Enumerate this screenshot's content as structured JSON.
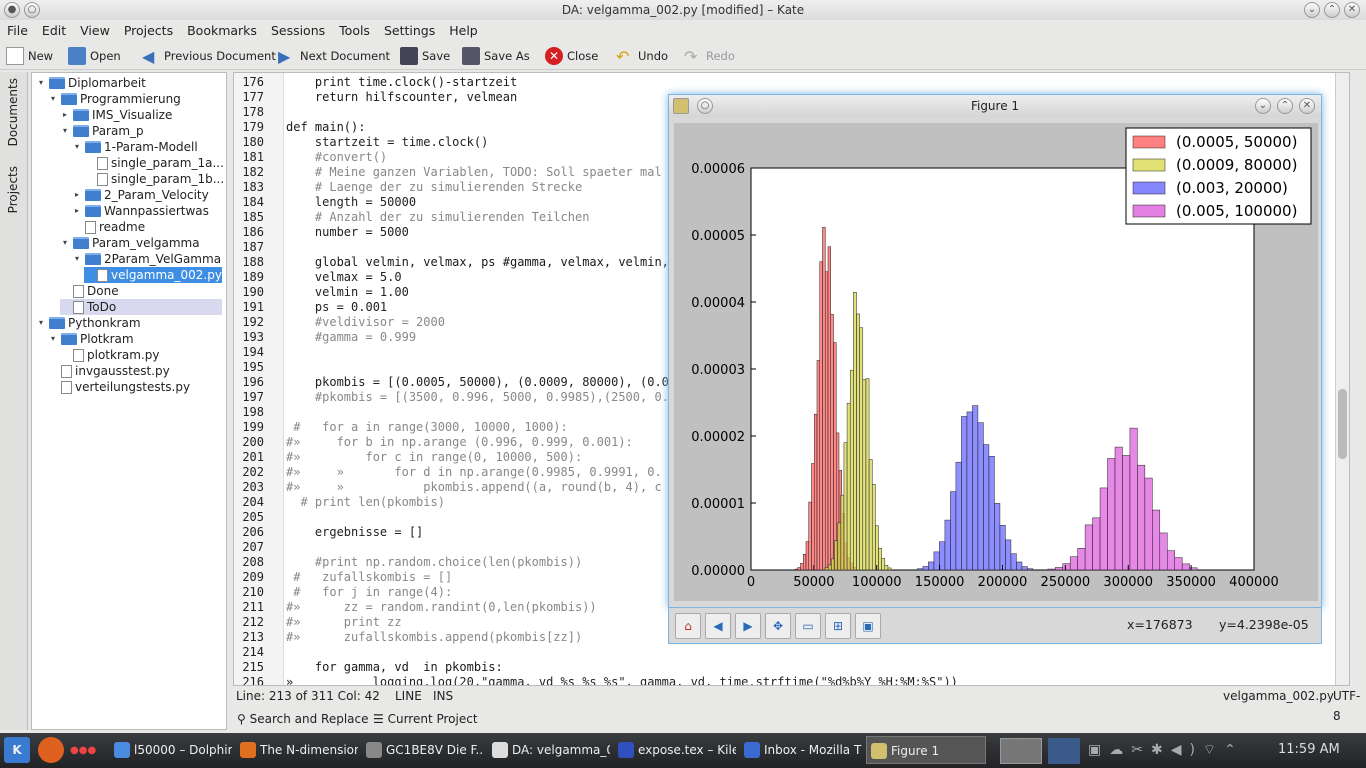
{
  "window": {
    "title": "DA: velgamma_002.py [modified] – Kate"
  },
  "menu": [
    "File",
    "Edit",
    "View",
    "Projects",
    "Bookmarks",
    "Sessions",
    "Tools",
    "Settings",
    "Help"
  ],
  "toolbar": {
    "new": "New",
    "open": "Open",
    "prev": "Previous Document",
    "next": "Next Document",
    "save": "Save",
    "saveas": "Save As",
    "close": "Close",
    "undo": "Undo",
    "redo": "Redo"
  },
  "sidetabs": {
    "documents": "Documents",
    "projects": "Projects"
  },
  "tree": [
    {
      "label": "Diplomarbeit",
      "indent": 0,
      "type": "folder",
      "arrow": "▾"
    },
    {
      "label": "Programmierung",
      "indent": 1,
      "type": "folder",
      "arrow": "▾"
    },
    {
      "label": "IMS_Visualize",
      "indent": 2,
      "type": "folder",
      "arrow": "▸"
    },
    {
      "label": "Param_p",
      "indent": 2,
      "type": "folder",
      "arrow": "▾"
    },
    {
      "label": "1-Param-Modell",
      "indent": 3,
      "type": "folder",
      "arrow": "▾"
    },
    {
      "label": "single_param_1a...",
      "indent": 4,
      "type": "file",
      "arrow": ""
    },
    {
      "label": "single_param_1b...",
      "indent": 4,
      "type": "file",
      "arrow": ""
    },
    {
      "label": "2_Param_Velocity",
      "indent": 3,
      "type": "folder",
      "arrow": "▸"
    },
    {
      "label": "Wannpassiertwas",
      "indent": 3,
      "type": "folder",
      "arrow": "▸"
    },
    {
      "label": "readme",
      "indent": 3,
      "type": "file",
      "arrow": ""
    },
    {
      "label": "Param_velgamma",
      "indent": 2,
      "type": "folder",
      "arrow": "▾"
    },
    {
      "label": "2Param_VelGamma",
      "indent": 3,
      "type": "folder",
      "arrow": "▾"
    },
    {
      "label": "velgamma_002.py",
      "indent": 4,
      "type": "file",
      "arrow": "",
      "selected": true
    },
    {
      "label": "Done",
      "indent": 2,
      "type": "file",
      "arrow": ""
    },
    {
      "label": "ToDo",
      "indent": 2,
      "type": "file",
      "arrow": "",
      "hl": true
    },
    {
      "label": "Pythonkram",
      "indent": 0,
      "type": "folder",
      "arrow": "▾"
    },
    {
      "label": "Plotkram",
      "indent": 1,
      "type": "folder",
      "arrow": "▾"
    },
    {
      "label": "plotkram.py",
      "indent": 2,
      "type": "file",
      "arrow": ""
    },
    {
      "label": "invgausstest.py",
      "indent": 1,
      "type": "file",
      "arrow": ""
    },
    {
      "label": "verteilungstests.py",
      "indent": 1,
      "type": "file",
      "arrow": ""
    }
  ],
  "code": [
    {
      "n": "176",
      "t": "    print time.clock()-startzeit"
    },
    {
      "n": "177",
      "t": "    return hilfscounter, velmean"
    },
    {
      "n": "178",
      "t": ""
    },
    {
      "n": "179",
      "t": "def main():"
    },
    {
      "n": "180",
      "t": "    startzeit = time.clock()"
    },
    {
      "n": "181",
      "t": "    #convert()"
    },
    {
      "n": "182",
      "t": "    # Meine ganzen Variablen, TODO: Soll spaeter mal"
    },
    {
      "n": "183",
      "t": "    # Laenge der zu simulierenden Strecke"
    },
    {
      "n": "184",
      "t": "    length = 50000"
    },
    {
      "n": "185",
      "t": "    # Anzahl der zu simulierenden Teilchen"
    },
    {
      "n": "186",
      "t": "    number = 5000"
    },
    {
      "n": "187",
      "t": ""
    },
    {
      "n": "188",
      "t": "    global velmin, velmax, ps #gamma, velmax, velmin,"
    },
    {
      "n": "189",
      "t": "    velmax = 5.0"
    },
    {
      "n": "190",
      "t": "    velmin = 1.00"
    },
    {
      "n": "191",
      "t": "    ps = 0.001"
    },
    {
      "n": "192",
      "t": "    #veldivisor = 2000"
    },
    {
      "n": "193",
      "t": "    #gamma = 0.999"
    },
    {
      "n": "194",
      "t": ""
    },
    {
      "n": "195",
      "t": ""
    },
    {
      "n": "196",
      "t": "    pkombis = [(0.0005, 50000), (0.0009, 80000), (0.0"
    },
    {
      "n": "197",
      "t": "    #pkombis = [(3500, 0.996, 5000, 0.9985),(2500, 0."
    },
    {
      "n": "198",
      "t": ""
    },
    {
      "n": "199",
      "t": " #   for a in range(3000, 10000, 1000):"
    },
    {
      "n": "200",
      "t": "#»     for b in np.arange (0.996, 0.999, 0.001):"
    },
    {
      "n": "201",
      "t": "#»         for c in range(0, 10000, 500):"
    },
    {
      "n": "202",
      "t": "#»     »       for d in np.arange(0.9985, 0.9991, 0."
    },
    {
      "n": "203",
      "t": "#»     »           pkombis.append((a, round(b, 4), c"
    },
    {
      "n": "204",
      "t": "  # print len(pkombis)"
    },
    {
      "n": "205",
      "t": ""
    },
    {
      "n": "206",
      "t": "    ergebnisse = []"
    },
    {
      "n": "207",
      "t": ""
    },
    {
      "n": "208",
      "t": "    #print np.random.choice(len(pkombis))"
    },
    {
      "n": "209",
      "t": " #   zufallskombis = []"
    },
    {
      "n": "210",
      "t": " #   for j in range(4):"
    },
    {
      "n": "211",
      "t": "#»      zz = random.randint(0,len(pkombis))"
    },
    {
      "n": "212",
      "t": "#»      print zz"
    },
    {
      "n": "213",
      "t": "#»      zufallskombis.append(pkombis[zz])"
    },
    {
      "n": "214",
      "t": ""
    },
    {
      "n": "215",
      "t": "    for gamma, vd  in pkombis:"
    },
    {
      "n": "216",
      "t": "»           logging.log(20,\"gamma, vd %s %s %s\", gamma, vd, time.strftime(\"%d%b%Y %H:%M:%S\"))"
    }
  ],
  "status": {
    "position": "Line: 213 of 311 Col: 42",
    "mode": "LINE",
    "ins": "INS",
    "file": "velgamma_002.py",
    "enc": "UTF-8"
  },
  "bottom": {
    "search": "Search and Replace",
    "project": "Current Project"
  },
  "figure": {
    "title": "Figure 1",
    "coords_x": "x=176873",
    "coords_y": "y=4.2398e-05"
  },
  "chart_data": {
    "type": "bar",
    "title": "",
    "xlabel": "",
    "ylabel": "",
    "xlim": [
      0,
      400000
    ],
    "ylim": [
      0,
      6e-05
    ],
    "xticks": [
      "0",
      "50000",
      "100000",
      "150000",
      "200000",
      "250000",
      "300000",
      "350000",
      "400000"
    ],
    "yticks": [
      "0.00000",
      "0.00001",
      "0.00002",
      "0.00003",
      "0.00004",
      "0.00005",
      "0.00006"
    ],
    "legend": "top-right",
    "series": [
      {
        "name": "(0.0005, 50000)",
        "color": "#ff6060",
        "center": 60000,
        "sd": 7000,
        "peak": 5.1e-05
      },
      {
        "name": "(0.0009, 80000)",
        "color": "#d8d850",
        "center": 85000,
        "sd": 8000,
        "peak": 4e-05
      },
      {
        "name": "(0.003, 20000)",
        "color": "#6868ff",
        "center": 178000,
        "sd": 14000,
        "peak": 2.5e-05
      },
      {
        "name": "(0.005, 100000)",
        "color": "#dd60dd",
        "center": 298000,
        "sd": 19000,
        "peak": 1.95e-05
      }
    ]
  },
  "taskbar": [
    {
      "label": "l50000 – Dolphin",
      "color": "#4a8be0"
    },
    {
      "label": "The N-dimension",
      "color": "#e07020"
    },
    {
      "label": "GC1BE8V Die F...",
      "color": "#888"
    },
    {
      "label": "DA: velgamma_0",
      "color": "#ddd"
    },
    {
      "label": "expose.tex – Kile",
      "color": "#3050c0"
    },
    {
      "label": "Inbox - Mozilla T",
      "color": "#3a6ad0"
    },
    {
      "label": "Figure 1",
      "color": "#d0c070"
    }
  ],
  "clock": "11:59 AM"
}
